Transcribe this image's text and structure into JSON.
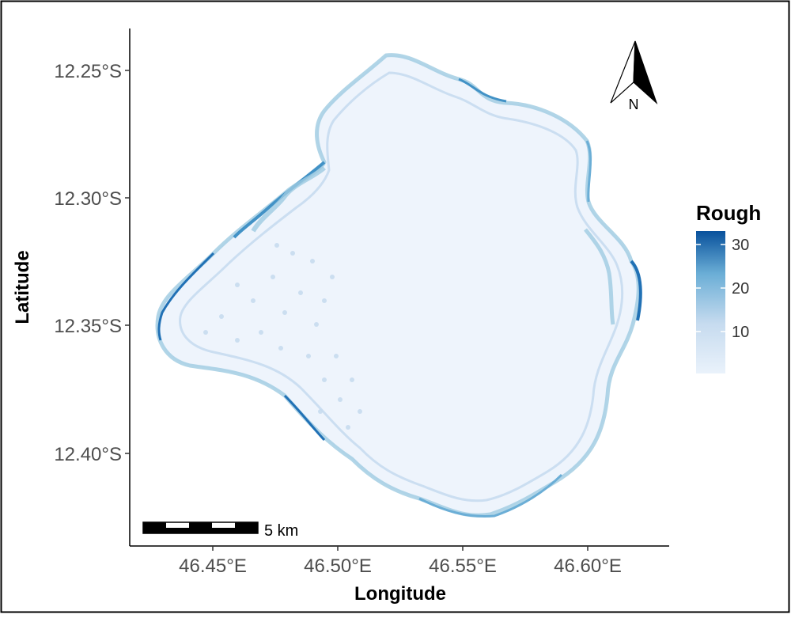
{
  "map": {
    "x_axis": {
      "title": "Longitude",
      "ticks": [
        {
          "value": 46.45,
          "label": "46.45°E"
        },
        {
          "value": 46.5,
          "label": "46.50°E"
        },
        {
          "value": 46.55,
          "label": "46.55°E"
        },
        {
          "value": 46.6,
          "label": "46.60°E"
        }
      ]
    },
    "y_axis": {
      "title": "Latitude",
      "ticks": [
        {
          "value": -12.25,
          "label": "12.25°S"
        },
        {
          "value": -12.3,
          "label": "12.30°S"
        },
        {
          "value": -12.35,
          "label": "12.35°S"
        },
        {
          "value": -12.4,
          "label": "12.40°S"
        }
      ]
    },
    "legend": {
      "title": "Rough",
      "range": [
        0,
        33
      ],
      "breaks": [
        {
          "value": 10,
          "label": "10"
        },
        {
          "value": 20,
          "label": "20"
        },
        {
          "value": 30,
          "label": "30"
        }
      ],
      "color_low": "#eaf2fb",
      "color_high": "#08519c"
    },
    "north_arrow": {
      "label": "N"
    },
    "scale_bar": {
      "label": "5 km"
    },
    "colors": {
      "lagoon_fill": "#eef4fc",
      "reef_light": "#c6dbef",
      "reef_mid": "#9ecae1",
      "reef_dark": "#4292c6",
      "reef_darkest": "#2171b5"
    }
  }
}
